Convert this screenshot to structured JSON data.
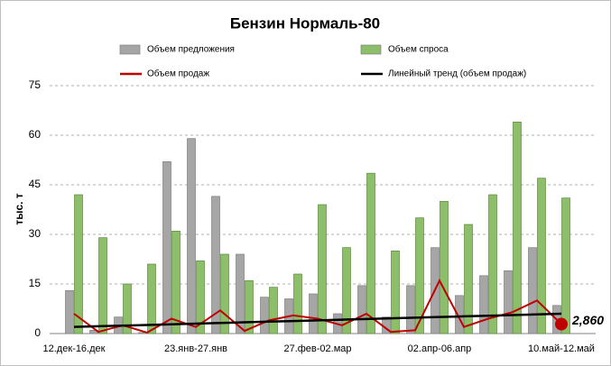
{
  "chart_data": {
    "type": "bar_line",
    "title": "Бензин Нормаль-80",
    "y_label": "тыс. т",
    "categories": [
      "12.дек-16.дек",
      null,
      null,
      null,
      null,
      "23.янв-27.янв",
      null,
      null,
      null,
      null,
      "27.фев-02.мар",
      null,
      null,
      null,
      null,
      "02.апр-06.апр",
      null,
      null,
      null,
      null,
      "10.май-12.май"
    ],
    "ylim": [
      0,
      75
    ],
    "yticks": [
      0,
      15,
      30,
      45,
      60,
      75
    ],
    "grid": true,
    "legend": "top",
    "series": [
      {
        "name": "Объем предложения",
        "kind": "bar",
        "color": "#a6a6a6",
        "values": [
          13,
          1,
          5,
          0.3,
          52,
          59,
          41.5,
          24,
          11,
          10.5,
          12,
          6,
          14.5,
          5,
          14.5,
          26,
          11.5,
          17.5,
          19,
          26,
          8.5
        ]
      },
      {
        "name": "Объем спроса",
        "kind": "bar",
        "color": "#8dbf6b",
        "values": [
          42,
          29,
          15,
          21,
          31,
          22,
          24,
          16,
          14,
          18,
          39,
          26,
          48.5,
          25,
          35,
          40,
          33,
          42,
          64,
          47,
          41
        ]
      },
      {
        "name": "Объем продаж",
        "kind": "line",
        "color": "#c00000",
        "values": [
          6,
          0.5,
          2.5,
          0.3,
          4.5,
          2,
          7,
          0.8,
          4,
          5.5,
          4.5,
          2.5,
          6,
          0.5,
          1,
          16,
          2,
          4.5,
          6.5,
          10,
          2.86
        ],
        "value_labels": [
          null,
          null,
          null,
          null,
          null,
          null,
          null,
          null,
          null,
          null,
          null,
          null,
          null,
          null,
          null,
          null,
          null,
          null,
          null,
          null,
          "2,860"
        ]
      },
      {
        "name": "Линейный тренд (объем продаж)",
        "kind": "line",
        "color": "#000000",
        "values": [
          2,
          2.2,
          2.4,
          2.6,
          2.8,
          3,
          3.2,
          3.4,
          3.6,
          3.8,
          4,
          4.2,
          4.4,
          4.6,
          4.8,
          5,
          5.2,
          5.4,
          5.6,
          5.8,
          6
        ]
      }
    ]
  }
}
